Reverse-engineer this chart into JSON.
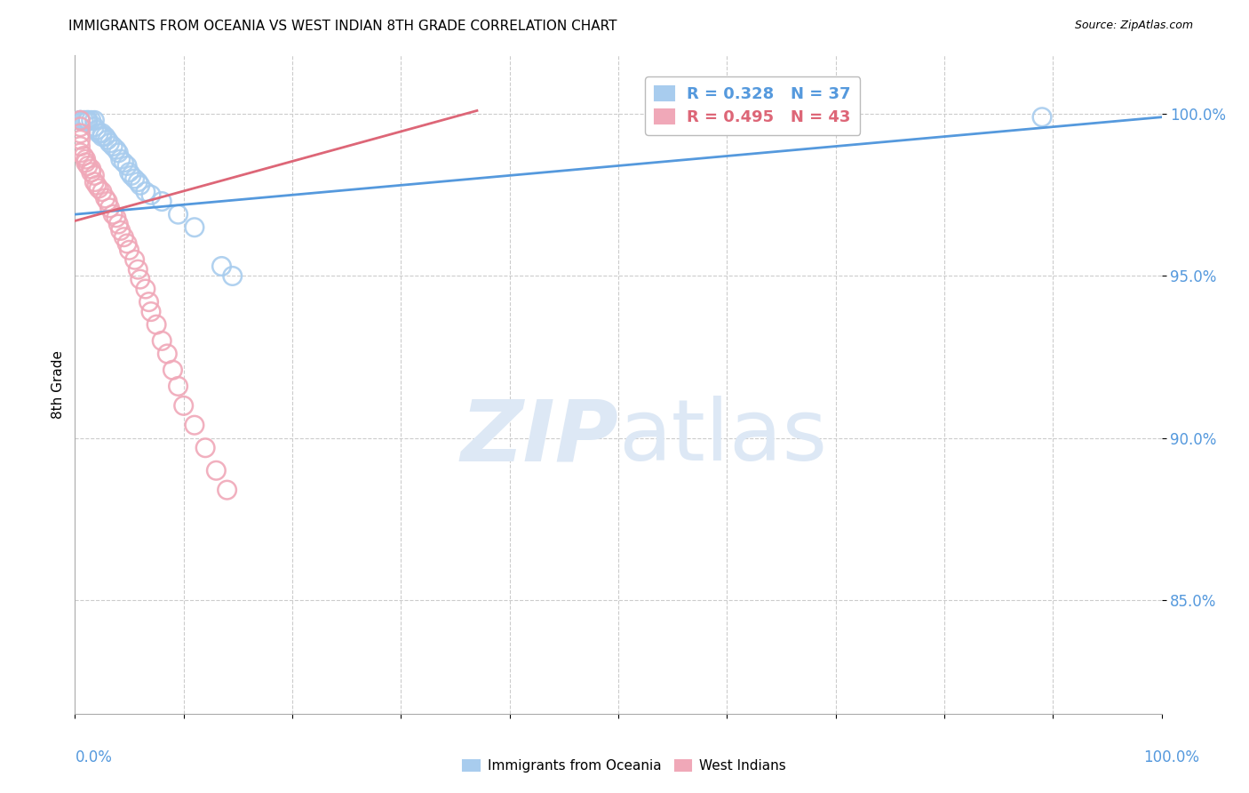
{
  "title": "IMMIGRANTS FROM OCEANIA VS WEST INDIAN 8TH GRADE CORRELATION CHART",
  "source": "Source: ZipAtlas.com",
  "ylabel": "8th Grade",
  "y_tick_labels": [
    "85.0%",
    "90.0%",
    "95.0%",
    "100.0%"
  ],
  "y_tick_values": [
    0.85,
    0.9,
    0.95,
    1.0
  ],
  "x_range": [
    0.0,
    1.0
  ],
  "y_range": [
    0.815,
    1.018
  ],
  "legend_blue_r": "R = 0.328",
  "legend_blue_n": "N = 37",
  "legend_pink_r": "R = 0.495",
  "legend_pink_n": "N = 43",
  "blue_color": "#A8CCEE",
  "pink_color": "#F0A8B8",
  "blue_line_color": "#5599DD",
  "pink_line_color": "#DD6677",
  "watermark_color": "#DDE8F5",
  "blue_points_x": [
    0.005,
    0.005,
    0.005,
    0.008,
    0.01,
    0.012,
    0.012,
    0.015,
    0.018,
    0.018,
    0.02,
    0.022,
    0.025,
    0.025,
    0.028,
    0.03,
    0.032,
    0.035,
    0.038,
    0.04,
    0.042,
    0.045,
    0.048,
    0.05,
    0.052,
    0.055,
    0.058,
    0.06,
    0.065,
    0.07,
    0.08,
    0.095,
    0.11,
    0.135,
    0.145,
    0.695,
    0.89
  ],
  "blue_points_y": [
    0.998,
    0.998,
    0.998,
    0.998,
    0.998,
    0.998,
    0.998,
    0.998,
    0.998,
    0.996,
    0.995,
    0.994,
    0.993,
    0.994,
    0.993,
    0.992,
    0.991,
    0.99,
    0.989,
    0.988,
    0.986,
    0.985,
    0.984,
    0.982,
    0.981,
    0.98,
    0.979,
    0.978,
    0.976,
    0.975,
    0.973,
    0.969,
    0.965,
    0.953,
    0.95,
    0.998,
    0.999
  ],
  "pink_points_x": [
    0.005,
    0.005,
    0.005,
    0.005,
    0.005,
    0.005,
    0.008,
    0.01,
    0.01,
    0.012,
    0.015,
    0.015,
    0.018,
    0.018,
    0.02,
    0.022,
    0.025,
    0.028,
    0.03,
    0.032,
    0.035,
    0.038,
    0.04,
    0.042,
    0.045,
    0.048,
    0.05,
    0.055,
    0.058,
    0.06,
    0.065,
    0.068,
    0.07,
    0.075,
    0.08,
    0.085,
    0.09,
    0.095,
    0.1,
    0.11,
    0.12,
    0.13,
    0.14
  ],
  "pink_points_y": [
    0.998,
    0.996,
    0.994,
    0.992,
    0.99,
    0.988,
    0.987,
    0.986,
    0.985,
    0.984,
    0.983,
    0.982,
    0.981,
    0.979,
    0.978,
    0.977,
    0.976,
    0.974,
    0.973,
    0.971,
    0.969,
    0.968,
    0.966,
    0.964,
    0.962,
    0.96,
    0.958,
    0.955,
    0.952,
    0.949,
    0.946,
    0.942,
    0.939,
    0.935,
    0.93,
    0.926,
    0.921,
    0.916,
    0.91,
    0.904,
    0.897,
    0.89,
    0.884
  ],
  "blue_trend_x": [
    0.0,
    1.0
  ],
  "blue_trend_y": [
    0.969,
    0.999
  ],
  "pink_trend_x": [
    0.0,
    0.37
  ],
  "pink_trend_y": [
    0.967,
    1.001
  ],
  "x_ticks": [
    0.0,
    0.1,
    0.2,
    0.3,
    0.4,
    0.5,
    0.6,
    0.7,
    0.8,
    0.9,
    1.0
  ]
}
